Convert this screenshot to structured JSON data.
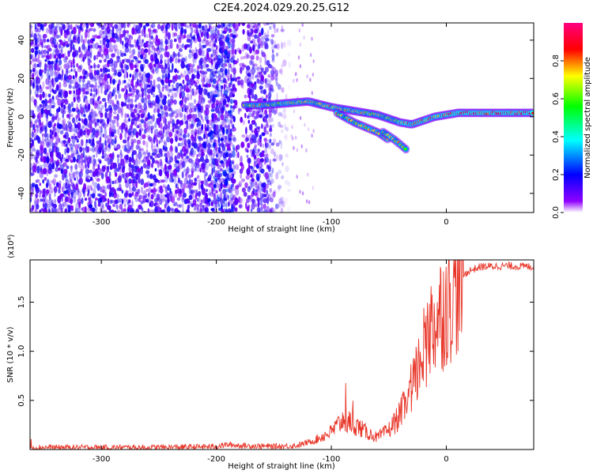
{
  "title": "C2E4.2024.029.20.25.G12",
  "chart_data": [
    {
      "type": "heatmap",
      "xlabel": "Height of straight line (km)",
      "ylabel": "Frequency (Hz)",
      "xlim": [
        -362,
        76
      ],
      "ylim": [
        -50,
        49
      ],
      "xticks": [
        -300,
        -200,
        -100,
        0
      ],
      "yticks": [
        -40,
        -20,
        0,
        20,
        40
      ],
      "colorbar": {
        "label": "Normalized spectral amplitude",
        "range": [
          0,
          1
        ],
        "ticks": [
          0.0,
          0.2,
          0.4,
          0.6,
          0.8
        ],
        "colormap": [
          "#ffffff",
          "#8f00ff",
          "#0000ff",
          "#00ffff",
          "#00ff00",
          "#ffff00",
          "#ff0000",
          "#ff0080"
        ]
      },
      "noise_region_x": [
        -362,
        -135
      ],
      "ridge": {
        "x": [
          -175,
          -160,
          -140,
          -120,
          -100,
          -80,
          -60,
          -40,
          -30,
          -20,
          -10,
          0,
          10,
          30,
          50,
          76
        ],
        "y": [
          6,
          6,
          7,
          8,
          5,
          3,
          1,
          -3,
          -4,
          -2,
          0,
          1,
          2,
          2,
          2,
          2
        ]
      },
      "branches": [
        {
          "x": [
            -95,
            -80,
            -60,
            -50
          ],
          "y": [
            2,
            -3,
            -8,
            -12
          ]
        },
        {
          "x": [
            -55,
            -45,
            -35
          ],
          "y": [
            -8,
            -12,
            -17
          ]
        }
      ]
    },
    {
      "type": "line",
      "xlabel": "Height of straight line (km)",
      "ylabel": "SNR (10 * v/v)",
      "yscale_note": "(x10⁴)",
      "xlim": [
        -362,
        76
      ],
      "ylim": [
        0,
        1.93
      ],
      "xticks": [
        -300,
        -200,
        -100,
        0
      ],
      "yticks": [
        0.5,
        1.0,
        1.5
      ],
      "line_color": "#e8372a",
      "profile": {
        "x": [
          -362,
          -300,
          -250,
          -200,
          -190,
          -180,
          -150,
          -130,
          -115,
          -100,
          -90,
          -80,
          -70,
          -60,
          -50,
          -40,
          -30,
          -25,
          -20,
          -15,
          -10,
          -5,
          0,
          5,
          10,
          20,
          30,
          50,
          76
        ],
        "y": [
          0.02,
          0.02,
          0.02,
          0.03,
          0.05,
          0.04,
          0.03,
          0.04,
          0.09,
          0.18,
          0.3,
          0.26,
          0.18,
          0.12,
          0.2,
          0.35,
          0.6,
          0.8,
          1.0,
          1.2,
          1.3,
          1.4,
          1.48,
          1.6,
          1.72,
          1.82,
          1.86,
          1.87,
          1.86
        ]
      }
    }
  ]
}
